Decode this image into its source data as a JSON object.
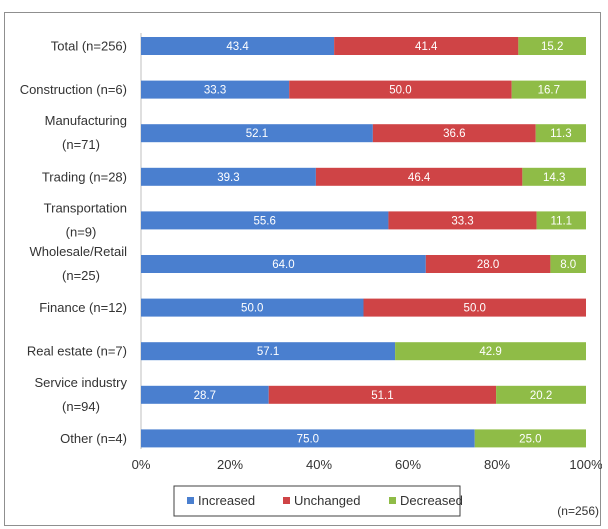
{
  "chart_data": {
    "type": "bar",
    "orientation": "horizontal",
    "stacked": true,
    "categories": [
      [
        "Total (n=256)"
      ],
      [
        "Construction (n=6)"
      ],
      [
        "Manufacturing",
        "(n=71)"
      ],
      [
        "Trading (n=28)"
      ],
      [
        "Transportation",
        "(n=9)"
      ],
      [
        "Wholesale/Retail",
        "(n=25)"
      ],
      [
        "Finance (n=12)"
      ],
      [
        "Real estate (n=7)"
      ],
      [
        "Service industry",
        "(n=94)"
      ],
      [
        "Other (n=4)"
      ]
    ],
    "series": [
      {
        "name": "Increased",
        "color": "#4a7fcf",
        "values": [
          43.4,
          33.3,
          52.1,
          39.3,
          55.6,
          64.0,
          50.0,
          57.1,
          28.7,
          75.0
        ]
      },
      {
        "name": "Unchanged",
        "color": "#cf4446",
        "values": [
          41.4,
          50.0,
          36.6,
          46.4,
          33.3,
          28.0,
          50.0,
          0,
          51.1,
          0
        ]
      },
      {
        "name": "Decreased",
        "color": "#8fbc47",
        "values": [
          15.2,
          16.7,
          11.3,
          14.3,
          11.1,
          8.0,
          0,
          42.9,
          20.2,
          25.0
        ]
      }
    ],
    "x_ticks": [
      "0%",
      "20%",
      "40%",
      "60%",
      "80%",
      "100%"
    ],
    "xlim": [
      0,
      100
    ],
    "legend_position": "bottom",
    "note": "(n=256)"
  }
}
